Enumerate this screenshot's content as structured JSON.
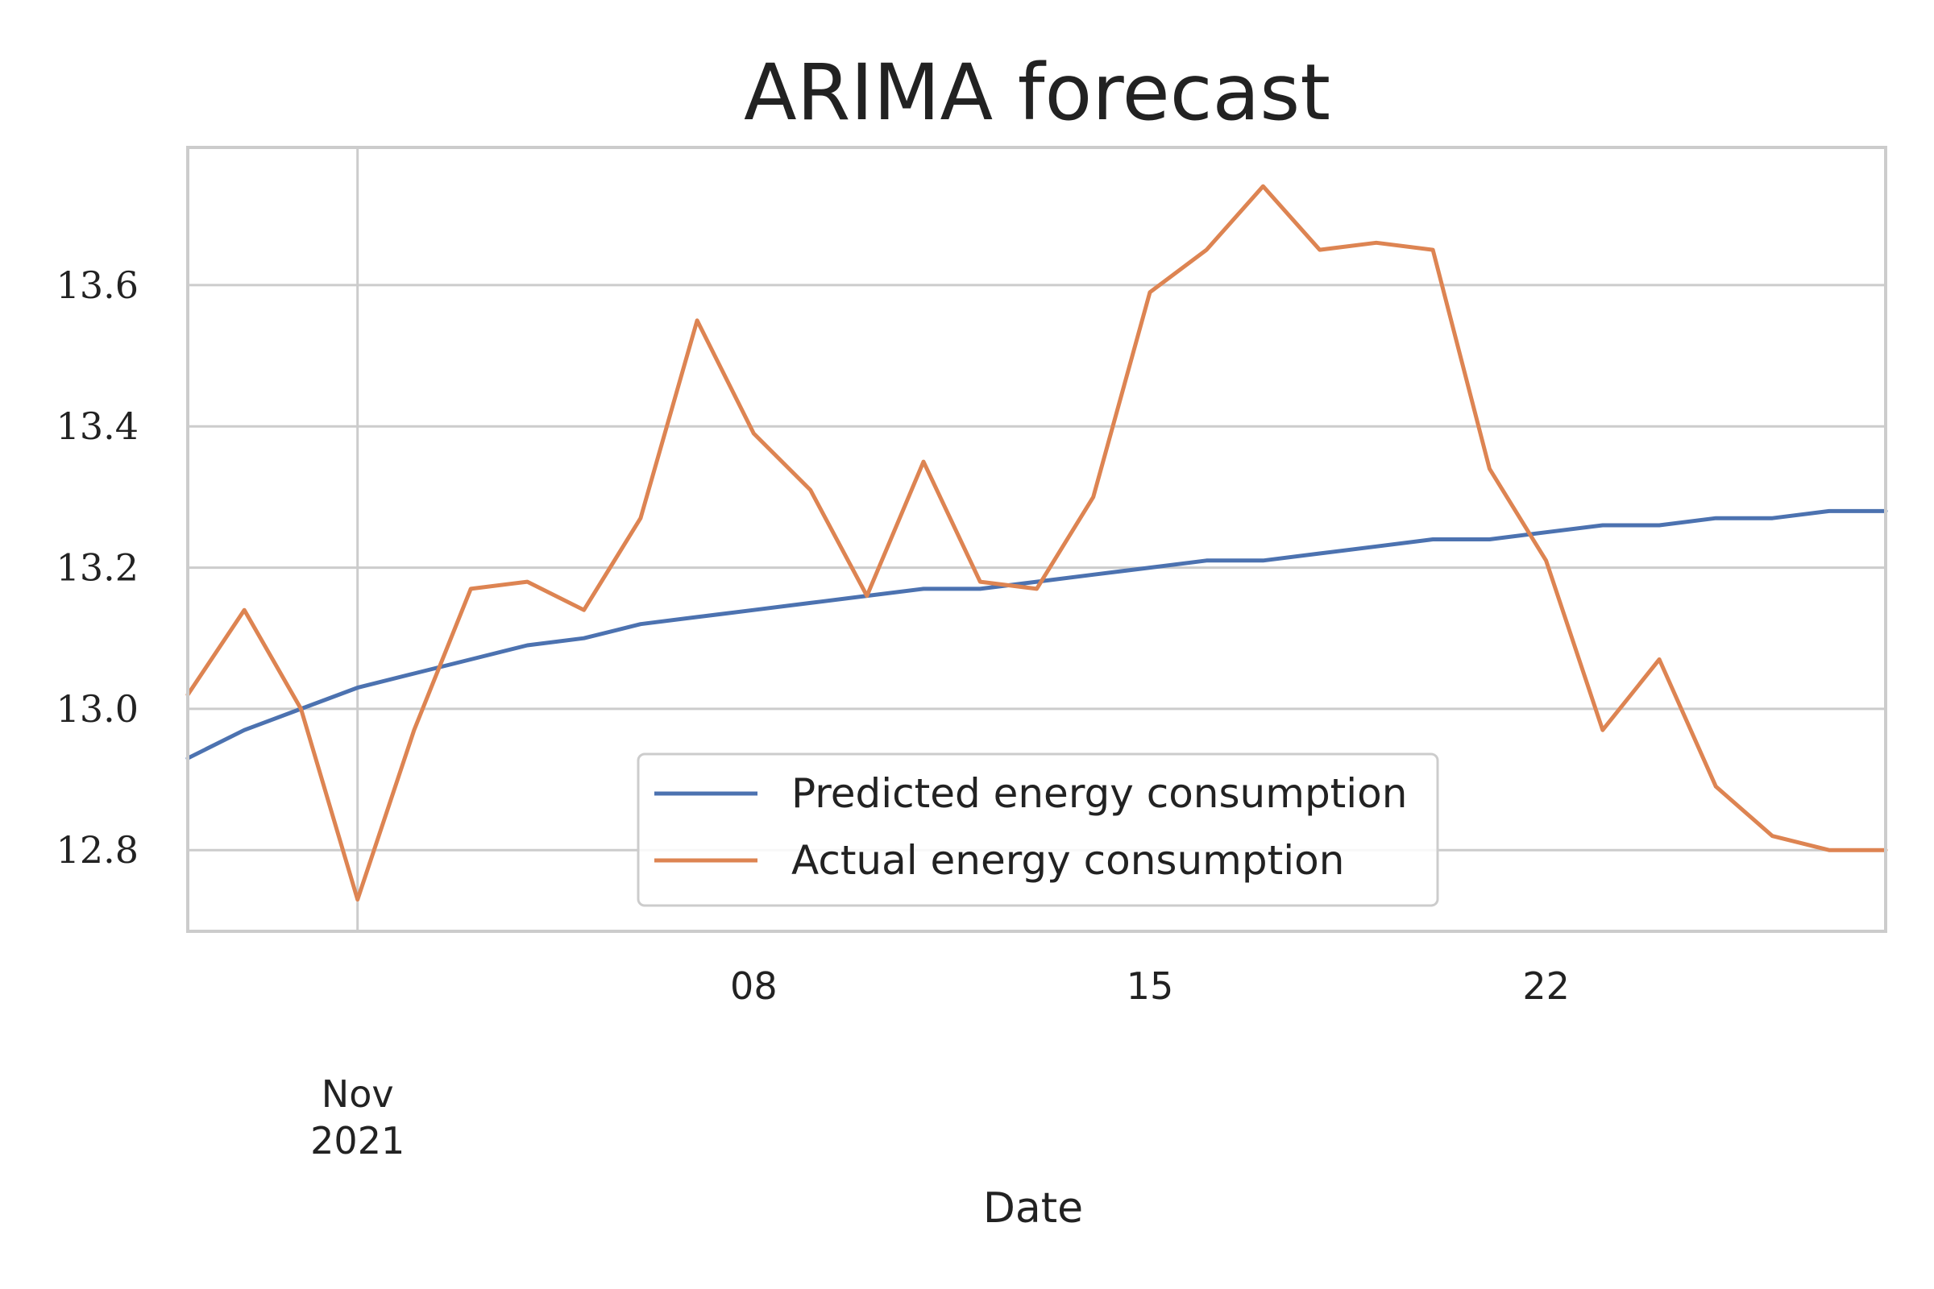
{
  "chart_data": {
    "type": "line",
    "title": "ARIMA forecast",
    "xlabel": "Date",
    "ylabel": "",
    "x": [
      "2021-10-29",
      "2021-10-30",
      "2021-10-31",
      "2021-11-01",
      "2021-11-02",
      "2021-11-03",
      "2021-11-04",
      "2021-11-05",
      "2021-11-06",
      "2021-11-07",
      "2021-11-08",
      "2021-11-09",
      "2021-11-10",
      "2021-11-11",
      "2021-11-12",
      "2021-11-13",
      "2021-11-14",
      "2021-11-15",
      "2021-11-16",
      "2021-11-17",
      "2021-11-18",
      "2021-11-19",
      "2021-11-20",
      "2021-11-21",
      "2021-11-22",
      "2021-11-23",
      "2021-11-24",
      "2021-11-25",
      "2021-11-26",
      "2021-11-27",
      "2021-11-28"
    ],
    "series": [
      {
        "name": "Predicted energy consumption",
        "color": "#4c72b0",
        "values": [
          12.93,
          12.97,
          13.0,
          13.03,
          13.05,
          13.07,
          13.09,
          13.1,
          13.12,
          13.13,
          13.14,
          13.15,
          13.16,
          13.17,
          13.17,
          13.18,
          13.19,
          13.2,
          13.21,
          13.21,
          13.22,
          13.23,
          13.24,
          13.24,
          13.25,
          13.26,
          13.26,
          13.27,
          13.27,
          13.28,
          13.28
        ]
      },
      {
        "name": "Actual energy consumption",
        "color": "#dd8452",
        "values": [
          13.02,
          13.14,
          13.0,
          12.73,
          12.97,
          13.17,
          13.18,
          13.14,
          13.27,
          13.55,
          13.39,
          13.31,
          13.16,
          13.35,
          13.18,
          13.17,
          13.3,
          13.59,
          13.65,
          13.74,
          13.65,
          13.66,
          13.65,
          13.34,
          13.21,
          12.97,
          13.07,
          12.89,
          12.82,
          12.8,
          12.8
        ]
      }
    ],
    "ylim": [
      12.685,
      13.795
    ],
    "xlim": [
      "2021-10-29",
      "2021-11-28"
    ],
    "y_ticks": [
      "12.8",
      "13.0",
      "13.2",
      "13.4",
      "13.6"
    ],
    "x_ticks": [
      {
        "date": "2021-11-01",
        "label": "Nov",
        "sublabel": "2021"
      },
      {
        "date": "2021-11-08",
        "label": "08",
        "sublabel": ""
      },
      {
        "date": "2021-11-15",
        "label": "15",
        "sublabel": ""
      },
      {
        "date": "2021-11-22",
        "label": "22",
        "sublabel": ""
      }
    ],
    "grid": true,
    "legend_position": "lower center"
  }
}
